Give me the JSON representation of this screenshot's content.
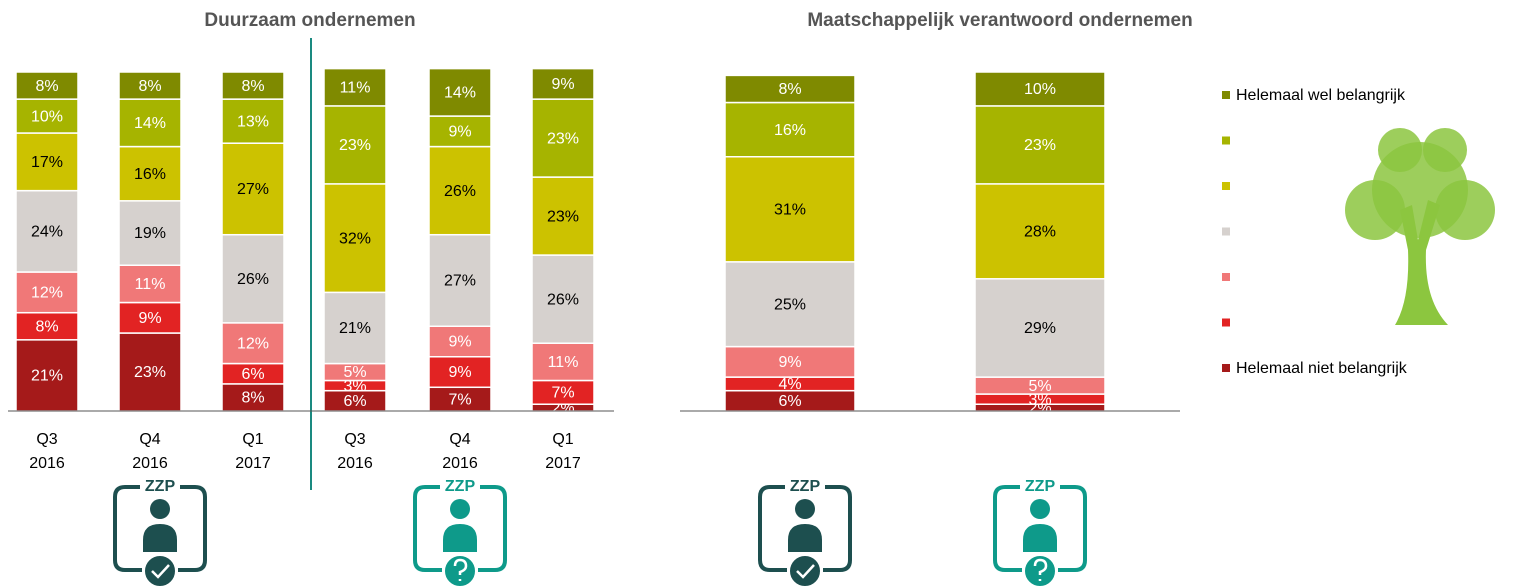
{
  "chart_data": [
    {
      "type": "stacked-bar",
      "title": "Duurzaam ondernemen",
      "categories": [
        "Q3 2016",
        "Q4 2016",
        "Q1 2017",
        "Q3 2016",
        "Q4 2016",
        "Q1 2017"
      ],
      "series": [
        {
          "name": null,
          "color": "#a51a1a",
          "label_color": "#ffffff",
          "values": [
            21,
            23,
            8,
            6,
            7,
            2
          ],
          "value_labels": [
            "21%",
            "23%",
            "8%",
            "6%",
            "7%",
            "2%"
          ]
        },
        {
          "name": null,
          "color": "#e22323",
          "label_color": "#ffffff",
          "values": [
            8,
            9,
            6,
            3,
            9,
            7
          ],
          "value_labels": [
            "8%",
            "9%",
            "6%",
            "3%",
            "9%",
            "7%"
          ]
        },
        {
          "name": null,
          "color": "#f07878",
          "label_color": "#ffffff",
          "values": [
            12,
            11,
            12,
            5,
            9,
            11
          ],
          "value_labels": [
            "12%",
            "11%",
            "12%",
            "5%",
            "9%",
            "11%"
          ]
        },
        {
          "name": null,
          "color": "#d6d1ce",
          "label_color": "#000000",
          "values": [
            24,
            19,
            26,
            21,
            27,
            26
          ],
          "value_labels": [
            "24%",
            "19%",
            "26%",
            "21%",
            "27%",
            "26%"
          ]
        },
        {
          "name": null,
          "color": "#ccc200",
          "label_color": "#000000",
          "values": [
            17,
            16,
            27,
            32,
            26,
            23
          ],
          "value_labels": [
            "17%",
            "16%",
            "27%",
            "32%",
            "26%",
            "23%"
          ]
        },
        {
          "name": null,
          "color": "#a6b400",
          "label_color": "#ffffff",
          "values": [
            10,
            14,
            13,
            23,
            9,
            23
          ],
          "value_labels": [
            "10%",
            "14%",
            "13%",
            "23%",
            "9%",
            "23%"
          ]
        },
        {
          "name": null,
          "color": "#7f8a00",
          "label_color": "#ffffff",
          "values": [
            8,
            8,
            8,
            11,
            14,
            9
          ],
          "value_labels": [
            "8%",
            "8%",
            "8%",
            "11%",
            "14%",
            "9%"
          ]
        }
      ]
    },
    {
      "type": "stacked-bar",
      "title": "Maatschappelijk verantwoord ondernemen",
      "categories": [
        null,
        null
      ],
      "series": [
        {
          "name": "Helemaal niet belangrijk",
          "color": "#a51a1a",
          "label_color": "#ffffff",
          "values": [
            6,
            2
          ],
          "value_labels": [
            "6%",
            "2%"
          ]
        },
        {
          "name": null,
          "color": "#e22323",
          "label_color": "#ffffff",
          "values": [
            4,
            3
          ],
          "value_labels": [
            "4%",
            "3%"
          ]
        },
        {
          "name": null,
          "color": "#f07878",
          "label_color": "#ffffff",
          "values": [
            9,
            5
          ],
          "value_labels": [
            "9%",
            "5%"
          ]
        },
        {
          "name": null,
          "color": "#d6d1ce",
          "label_color": "#000000",
          "values": [
            25,
            29
          ],
          "value_labels": [
            "25%",
            "29%"
          ]
        },
        {
          "name": null,
          "color": "#ccc200",
          "label_color": "#000000",
          "values": [
            31,
            28
          ],
          "value_labels": [
            "31%",
            "28%"
          ]
        },
        {
          "name": null,
          "color": "#a6b400",
          "label_color": "#ffffff",
          "values": [
            16,
            23
          ],
          "value_labels": [
            "16%",
            "23%"
          ]
        },
        {
          "name": "Helemaal wel belangrijk",
          "color": "#7f8a00",
          "label_color": "#ffffff",
          "values": [
            8,
            10
          ],
          "value_labels": [
            "8%",
            "10%"
          ]
        }
      ]
    }
  ],
  "icons": [
    "ZZP",
    "ZZP",
    "ZZP",
    "ZZP"
  ]
}
